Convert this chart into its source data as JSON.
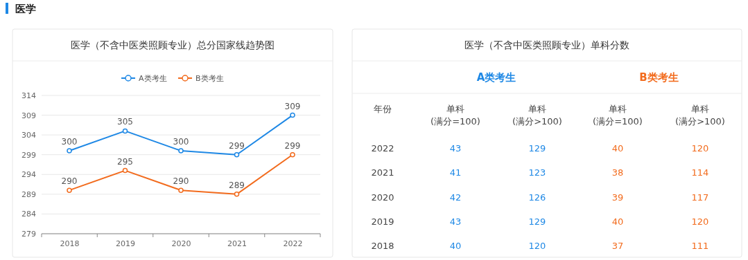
{
  "chart_data": [
    {
      "type": "line",
      "title": "医学（不含中医类照顾专业）总分国家线趋势图",
      "annotations": [
        "医学"
      ],
      "categories": [
        "2018",
        "2019",
        "2020",
        "2021",
        "2022"
      ],
      "series": [
        {
          "name": "A类考生",
          "color": "#1e88e5",
          "values": [
            300,
            305,
            300,
            299,
            309
          ]
        },
        {
          "name": "B类考生",
          "color": "#f26b1d",
          "values": [
            290,
            295,
            290,
            289,
            299
          ]
        }
      ],
      "ylim": [
        279,
        314
      ],
      "yticks": [
        279,
        284,
        289,
        294,
        299,
        304,
        309,
        314
      ],
      "grid": "y",
      "legend": "top",
      "marker": "circle",
      "data_labels": true
    },
    {
      "type": "heatmap",
      "title": "医学（不含中医类照顾专业）单科分数",
      "annotations": [
        "A类考生",
        "B类考生"
      ],
      "ylabel": "年份",
      "categories": [
        "单科\n(满分=100)",
        "单科\n(满分>100)",
        "单科\n(满分=100)",
        "单科\n(满分>100)"
      ],
      "colors": [
        "#1e88e5",
        "#1e88e5",
        "#f26b1d",
        "#f26b1d"
      ],
      "y_categories": [
        "2022",
        "2021",
        "2020",
        "2019",
        "2018"
      ],
      "cells": [
        [
          43,
          129,
          40,
          120
        ],
        [
          41,
          123,
          38,
          114
        ],
        [
          42,
          126,
          39,
          117
        ],
        [
          43,
          129,
          40,
          120
        ],
        [
          40,
          120,
          37,
          111
        ]
      ],
      "data_labels": true
    }
  ]
}
